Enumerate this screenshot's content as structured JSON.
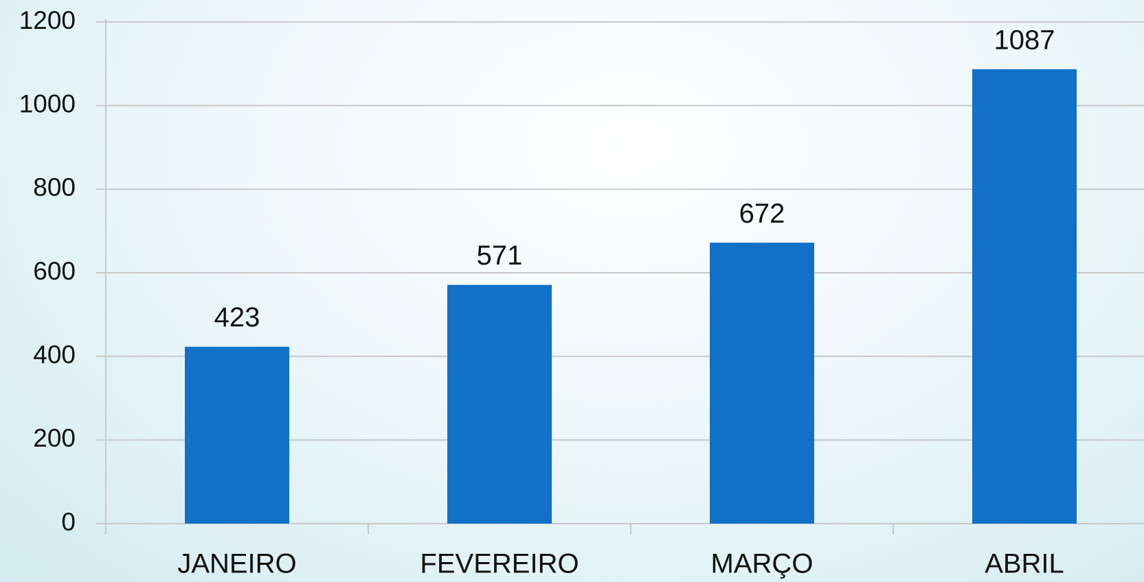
{
  "chart_data": {
    "type": "bar",
    "categories": [
      "JANEIRO",
      "FEVEREIRO",
      "MARÇO",
      "ABRIL"
    ],
    "values": [
      423,
      571,
      672,
      1087
    ],
    "color": "#1170c8",
    "ylim": [
      0,
      1200
    ],
    "yticks": [
      0,
      200,
      400,
      600,
      800,
      1000,
      1200
    ],
    "grid": true,
    "data_labels": true
  }
}
